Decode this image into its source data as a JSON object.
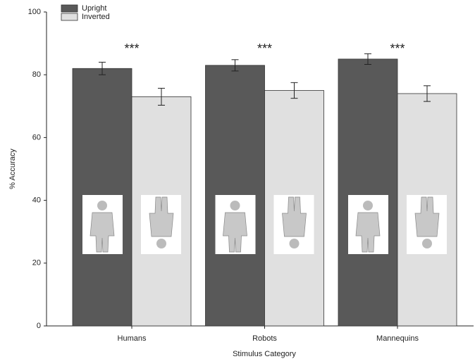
{
  "chart_data": {
    "type": "bar",
    "xlabel": "Stimulus Category",
    "ylabel": "% Accuracy",
    "categories": [
      "Humans",
      "Robots",
      "Mannequins"
    ],
    "series": [
      {
        "name": "Upright",
        "color": "#595959",
        "values": [
          82,
          83,
          85
        ],
        "errors": [
          2.0,
          1.8,
          1.7
        ]
      },
      {
        "name": "Inverted",
        "color": "#e0e0e0",
        "values": [
          73,
          75,
          74
        ],
        "errors": [
          2.7,
          2.5,
          2.5
        ]
      }
    ],
    "annotations": [
      "***",
      "***",
      "***"
    ],
    "ylim": [
      0,
      100
    ],
    "yticks": [
      0,
      20,
      40,
      60,
      80,
      100
    ],
    "grid": false,
    "legend": "top-left"
  }
}
